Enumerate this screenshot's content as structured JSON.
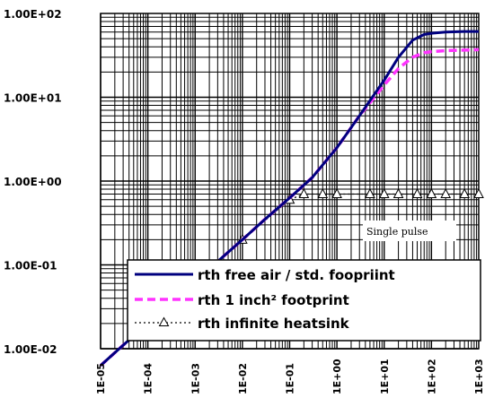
{
  "chart_data": {
    "type": "line",
    "title": "",
    "xlabel": "",
    "ylabel": "",
    "x_scale": "log",
    "y_scale": "log",
    "xlim": [
      1e-05,
      1000
    ],
    "ylim": [
      0.01,
      100
    ],
    "grid": true,
    "legend_position": "bottom-right",
    "x_tick_labels": [
      "1E-05",
      "1E-04",
      "1E-03",
      "1E-02",
      "1E-01",
      "1E+00",
      "1E+01",
      "1E+02",
      "1E+03"
    ],
    "y_tick_labels": [
      "1.00E-02",
      "1.00E-01",
      "1.00E+00",
      "1.00E+01",
      "1.00E+02"
    ],
    "annotation": "Single pulse",
    "series": [
      {
        "name": "rth free air / std. foopriint",
        "color": "#00007f",
        "style": "solid",
        "x": [
          1e-05,
          3e-05,
          0.0001,
          0.0003,
          0.001,
          0.003,
          0.01,
          0.03,
          0.1,
          0.3,
          1,
          3,
          10,
          20,
          40,
          70,
          100,
          200,
          500,
          1000
        ],
        "y": [
          0.0063,
          0.011,
          0.02,
          0.035,
          0.063,
          0.11,
          0.2,
          0.35,
          0.63,
          1.1,
          2.5,
          6,
          16,
          30,
          48,
          56,
          58,
          60,
          61,
          61
        ]
      },
      {
        "name": "rth 1 inch² footprint",
        "color": "#ff33ff",
        "style": "dashed",
        "x": [
          1e-05,
          3e-05,
          0.0001,
          0.0003,
          0.001,
          0.003,
          0.01,
          0.03,
          0.1,
          0.3,
          1,
          3,
          10,
          20,
          40,
          70,
          100,
          200,
          500,
          1000
        ],
        "y": [
          0.0063,
          0.011,
          0.02,
          0.035,
          0.063,
          0.11,
          0.2,
          0.35,
          0.63,
          1.1,
          2.5,
          6,
          14,
          22,
          30,
          34,
          35,
          36,
          36.5,
          37
        ]
      },
      {
        "name": "rth infinite heatsink",
        "color": "#000000",
        "style": "dotted-triangle",
        "x": [
          0.01,
          0.1,
          0.2,
          0.5,
          1,
          5,
          10,
          20,
          50,
          100,
          200,
          500,
          1000
        ],
        "y": [
          0.2,
          0.6,
          0.7,
          0.7,
          0.7,
          0.7,
          0.7,
          0.7,
          0.7,
          0.7,
          0.7,
          0.7,
          0.7
        ]
      }
    ]
  }
}
